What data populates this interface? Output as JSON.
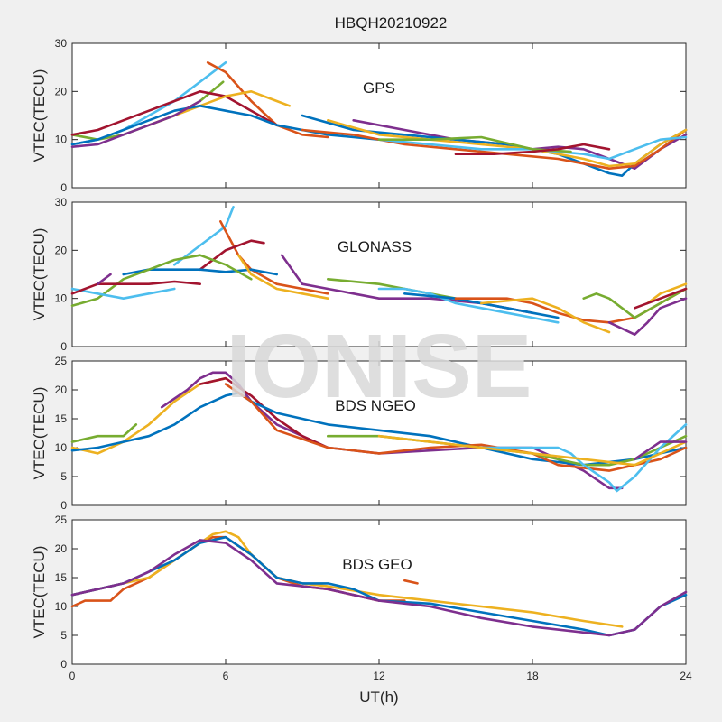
{
  "figure_title": "HBQH20210922",
  "watermark": "IONISE",
  "palette": {
    "blue": "#0072bd",
    "orange": "#d95319",
    "yellow": "#edb120",
    "purple": "#7e2f8e",
    "green": "#77ac30",
    "cyan": "#4dbeee",
    "maroon": "#a2142f"
  },
  "chart_data": [
    {
      "type": "line",
      "label": "GPS",
      "xlabel": "",
      "ylabel": "VTEC(TECU)",
      "xlim": [
        0,
        24
      ],
      "ylim": [
        0,
        30
      ],
      "xticks": [
        "0",
        "6",
        "12",
        "18",
        "24"
      ],
      "yticks": [
        "0",
        "10",
        "20",
        "30"
      ],
      "series": [
        {
          "color": "#4dbeee",
          "x": [
            0,
            1,
            2,
            3,
            4,
            5,
            6
          ],
          "y": [
            9,
            10,
            12,
            15,
            18,
            22,
            26
          ]
        },
        {
          "color": "#d95319",
          "x": [
            5.3,
            6,
            7,
            8,
            9,
            10
          ],
          "y": [
            26,
            24,
            18,
            13,
            11,
            10.5
          ]
        },
        {
          "color": "#77ac30",
          "x": [
            0,
            1,
            2,
            3,
            4,
            5,
            5.9
          ],
          "y": [
            11,
            10,
            11,
            13,
            15,
            18,
            22
          ]
        },
        {
          "color": "#a2142f",
          "x": [
            0,
            1,
            2,
            3,
            4,
            5,
            6,
            7,
            8
          ],
          "y": [
            11,
            12,
            14,
            16,
            18,
            20,
            19,
            16,
            13
          ]
        },
        {
          "color": "#edb120",
          "x": [
            3,
            4,
            5,
            6,
            7,
            8,
            8.5
          ],
          "y": [
            13,
            15,
            17,
            19,
            20,
            18,
            17
          ]
        },
        {
          "color": "#0072bd",
          "x": [
            0,
            1,
            2,
            3,
            4,
            5,
            6,
            7,
            8,
            9,
            10,
            11,
            12
          ],
          "y": [
            9,
            10,
            12,
            14,
            16,
            17,
            16,
            15,
            13,
            12,
            11,
            10.5,
            10
          ]
        },
        {
          "color": "#7e2f8e",
          "x": [
            0,
            1,
            2,
            3,
            4,
            5
          ],
          "y": [
            8.5,
            9,
            11,
            13,
            15,
            18
          ]
        },
        {
          "color": "#7e2f8e",
          "x": [
            11,
            13,
            15,
            17,
            18,
            19,
            20,
            21,
            22,
            23,
            24
          ],
          "y": [
            14,
            12,
            10,
            9,
            8,
            8.5,
            8,
            6,
            4,
            8,
            11
          ]
        },
        {
          "color": "#0072bd",
          "x": [
            9,
            11,
            13,
            15,
            17,
            19,
            20,
            21,
            21.5,
            22,
            23,
            24
          ],
          "y": [
            15,
            12,
            11,
            10,
            9,
            7,
            5,
            3,
            2.5,
            5,
            9,
            12
          ]
        },
        {
          "color": "#d95319",
          "x": [
            9,
            11,
            13,
            15,
            17,
            19,
            20,
            21,
            22,
            23,
            24
          ],
          "y": [
            12,
            11,
            9,
            8,
            7,
            6,
            5,
            4,
            4.5,
            8,
            12
          ]
        },
        {
          "color": "#edb120",
          "x": [
            10,
            12,
            14,
            16,
            18,
            20,
            21,
            22,
            23,
            24
          ],
          "y": [
            14,
            11,
            10,
            9,
            8,
            6,
            4.5,
            5,
            9,
            12
          ]
        },
        {
          "color": "#4dbeee",
          "x": [
            12,
            14,
            16,
            18,
            20,
            21,
            22,
            23,
            24
          ],
          "y": [
            10,
            9,
            8,
            8,
            7,
            6,
            8,
            10,
            10.5
          ]
        },
        {
          "color": "#77ac30",
          "x": [
            12,
            14,
            16,
            18,
            19.5
          ],
          "y": [
            10,
            10,
            10.5,
            8,
            7.5
          ]
        },
        {
          "color": "#a2142f",
          "x": [
            15,
            16.5,
            18,
            19,
            20,
            21
          ],
          "y": [
            7,
            7,
            7.5,
            8,
            9,
            8
          ]
        }
      ]
    },
    {
      "type": "line",
      "label": "GLONASS",
      "xlabel": "",
      "ylabel": "VTEC(TECU)",
      "xlim": [
        0,
        24
      ],
      "ylim": [
        0,
        30
      ],
      "xticks": [
        "0",
        "6",
        "12",
        "18",
        "24"
      ],
      "yticks": [
        "0",
        "10",
        "20",
        "30"
      ],
      "series": [
        {
          "color": "#4dbeee",
          "x": [
            4,
            5,
            6,
            6.3
          ],
          "y": [
            17,
            21,
            25,
            29
          ]
        },
        {
          "color": "#d95319",
          "x": [
            5.8,
            6.5,
            7,
            8,
            9,
            10
          ],
          "y": [
            26,
            19,
            16,
            13,
            12,
            11
          ]
        },
        {
          "color": "#a2142f",
          "x": [
            5,
            6,
            7,
            7.5
          ],
          "y": [
            16,
            20,
            22,
            21.5
          ]
        },
        {
          "color": "#0072bd",
          "x": [
            2,
            3,
            4,
            5,
            6,
            7,
            8
          ],
          "y": [
            15,
            16,
            16,
            16,
            15.5,
            16,
            15
          ]
        },
        {
          "color": "#77ac30",
          "x": [
            0,
            1,
            2,
            3,
            4,
            5,
            6,
            7
          ],
          "y": [
            8.5,
            10,
            14,
            16,
            18,
            19,
            17,
            14
          ]
        },
        {
          "color": "#4dbeee",
          "x": [
            0,
            1,
            2,
            3,
            4
          ],
          "y": [
            12,
            11,
            10,
            11,
            12
          ]
        },
        {
          "color": "#a2142f",
          "x": [
            0,
            1,
            2,
            3,
            4,
            5
          ],
          "y": [
            11,
            13,
            13,
            13,
            13.5,
            13
          ]
        },
        {
          "color": "#7e2f8e",
          "x": [
            1,
            1.5
          ],
          "y": [
            13,
            15
          ]
        },
        {
          "color": "#edb120",
          "x": [
            6.5,
            7,
            8,
            9,
            10
          ],
          "y": [
            19,
            15,
            12,
            11,
            10
          ]
        },
        {
          "color": "#7e2f8e",
          "x": [
            8.2,
            9,
            10,
            11,
            12,
            14,
            16,
            17,
            18
          ],
          "y": [
            19,
            13,
            12,
            11,
            10,
            10,
            9,
            8,
            7
          ]
        },
        {
          "color": "#77ac30",
          "x": [
            10,
            12,
            13,
            14,
            15
          ],
          "y": [
            14,
            13,
            12,
            11,
            10
          ]
        },
        {
          "color": "#4dbeee",
          "x": [
            12,
            13,
            14,
            15,
            16,
            17,
            18,
            19
          ],
          "y": [
            12,
            12,
            11,
            9,
            8,
            7,
            6,
            5
          ]
        },
        {
          "color": "#0072bd",
          "x": [
            13,
            15,
            17,
            18,
            19
          ],
          "y": [
            11,
            10,
            8,
            7,
            6
          ]
        },
        {
          "color": "#d95319",
          "x": [
            15,
            16,
            17,
            18,
            19,
            20,
            21,
            22,
            23,
            24
          ],
          "y": [
            10,
            10,
            10,
            9,
            7,
            5.5,
            5,
            6,
            9,
            12
          ]
        },
        {
          "color": "#edb120",
          "x": [
            16,
            17,
            18,
            19,
            20,
            21
          ],
          "y": [
            9,
            9.5,
            10,
            8,
            5,
            3
          ]
        },
        {
          "color": "#77ac30",
          "x": [
            20,
            20.5,
            21,
            21.5,
            22,
            23,
            24
          ],
          "y": [
            10,
            11,
            10,
            8,
            6,
            9,
            12
          ]
        },
        {
          "color": "#7e2f8e",
          "x": [
            21,
            22,
            22.5,
            23,
            24
          ],
          "y": [
            5,
            2.5,
            5,
            8,
            10
          ]
        },
        {
          "color": "#edb120",
          "x": [
            22.5,
            23,
            24
          ],
          "y": [
            9,
            11,
            13
          ]
        },
        {
          "color": "#a2142f",
          "x": [
            22,
            23,
            24
          ],
          "y": [
            8,
            10,
            12
          ]
        }
      ]
    },
    {
      "type": "line",
      "label": "BDS NGEO",
      "xlabel": "",
      "ylabel": "VTEC(TECU)",
      "xlim": [
        0,
        24
      ],
      "ylim": [
        0,
        25
      ],
      "xticks": [
        "0",
        "6",
        "12",
        "18",
        "24"
      ],
      "yticks": [
        "0",
        "5",
        "10",
        "15",
        "20",
        "25"
      ],
      "series": [
        {
          "color": "#edb120",
          "x": [
            0,
            1,
            2,
            3,
            4,
            5,
            6
          ],
          "y": [
            10,
            9,
            11,
            14,
            18,
            21,
            22
          ]
        },
        {
          "color": "#7e2f8e",
          "x": [
            3.5,
            4.5,
            5,
            5.5,
            6,
            6.5,
            7,
            8,
            9,
            10,
            12,
            14,
            16,
            18,
            20,
            21,
            21.5
          ],
          "y": [
            17,
            20,
            22,
            23,
            23,
            21,
            18,
            14,
            12,
            10,
            9,
            9.5,
            10,
            10,
            6,
            3,
            3
          ]
        },
        {
          "color": "#a2142f",
          "x": [
            5,
            6,
            7,
            8,
            9,
            10
          ],
          "y": [
            21,
            22,
            19,
            15,
            12,
            10
          ]
        },
        {
          "color": "#0072bd",
          "x": [
            0,
            1,
            2,
            3,
            4,
            5,
            6,
            6.5,
            7,
            8,
            9,
            10,
            12,
            14,
            16,
            18,
            20,
            22,
            23,
            24
          ],
          "y": [
            9.5,
            10,
            11,
            12,
            14,
            17,
            19,
            19.5,
            18,
            16,
            15,
            14,
            13,
            12,
            10,
            8,
            7,
            8,
            9,
            10
          ]
        },
        {
          "color": "#d95319",
          "x": [
            6,
            7,
            8,
            10,
            12,
            14,
            16,
            18,
            19,
            20,
            21,
            22,
            23,
            24
          ],
          "y": [
            21,
            18,
            13,
            10,
            9,
            10,
            10.5,
            9,
            7,
            6.5,
            6,
            7,
            8,
            10
          ]
        },
        {
          "color": "#77ac30",
          "x": [
            0,
            1,
            2,
            2.5
          ],
          "y": [
            11,
            12,
            12,
            14
          ]
        },
        {
          "color": "#77ac30",
          "x": [
            10,
            12,
            14,
            16,
            18,
            20,
            21,
            22,
            23,
            24
          ],
          "y": [
            12,
            12,
            11,
            10,
            9,
            7,
            7,
            8,
            10,
            12
          ]
        },
        {
          "color": "#4dbeee",
          "x": [
            16,
            18,
            19,
            19.5,
            20,
            21,
            21.3,
            22,
            23,
            24
          ],
          "y": [
            10,
            10,
            10,
            9,
            7,
            4,
            2.5,
            5,
            10,
            14
          ]
        },
        {
          "color": "#edb120",
          "x": [
            12,
            14,
            16,
            18,
            20,
            22,
            23,
            24
          ],
          "y": [
            12,
            11,
            10,
            9,
            8,
            7,
            9,
            11
          ]
        },
        {
          "color": "#7e2f8e",
          "x": [
            22,
            23,
            24
          ],
          "y": [
            8,
            11,
            11
          ]
        }
      ]
    },
    {
      "type": "line",
      "label": "BDS GEO",
      "xlabel": "UT(h)",
      "ylabel": "VTEC(TECU)",
      "xlim": [
        0,
        24
      ],
      "ylim": [
        0,
        25
      ],
      "xticks": [
        "0",
        "6",
        "12",
        "18",
        "24"
      ],
      "yticks": [
        "0",
        "5",
        "10",
        "15",
        "20",
        "25"
      ],
      "series": [
        {
          "color": "#d95319",
          "x": [
            0,
            0.5,
            1,
            1.5,
            2,
            3,
            4,
            5,
            5.5,
            6,
            7,
            8,
            9,
            10,
            11,
            12,
            13
          ],
          "y": [
            10,
            11,
            11,
            11,
            13,
            15,
            18,
            21,
            22,
            22,
            19,
            15,
            13.5,
            13,
            12,
            11,
            11
          ]
        },
        {
          "color": "#d95319",
          "x": [
            13,
            13.5
          ],
          "y": [
            14.5,
            14
          ]
        },
        {
          "color": "#edb120",
          "x": [
            0,
            1,
            2,
            3,
            4,
            5,
            5.5,
            6,
            6.5,
            7,
            8,
            9,
            10,
            12,
            14,
            16,
            18,
            20,
            21.5
          ],
          "y": [
            12,
            13,
            14,
            15,
            18,
            21,
            22.5,
            23,
            22,
            19,
            15,
            14,
            13.5,
            12,
            11,
            10,
            9,
            7.5,
            6.5
          ]
        },
        {
          "color": "#0072bd",
          "x": [
            0,
            1,
            2,
            3,
            4,
            5,
            6,
            7,
            8,
            9,
            10,
            11,
            12,
            14,
            16,
            18,
            20,
            21,
            22,
            23,
            24
          ],
          "y": [
            12,
            13,
            14,
            16,
            18,
            21,
            22,
            19,
            15,
            14,
            14,
            13,
            11,
            10.5,
            9,
            7.5,
            6,
            5,
            6,
            10,
            12
          ]
        },
        {
          "color": "#7e2f8e",
          "x": [
            0,
            1,
            2,
            3,
            4,
            5,
            6,
            7,
            8,
            9,
            10,
            11,
            12,
            14,
            16,
            18,
            20,
            21,
            22,
            23,
            24
          ],
          "y": [
            12,
            13,
            14,
            16,
            19,
            21.5,
            21,
            18,
            14,
            13.5,
            13,
            12,
            11,
            10,
            8,
            6.5,
            5.5,
            5,
            6,
            10,
            12.5
          ]
        }
      ]
    }
  ]
}
